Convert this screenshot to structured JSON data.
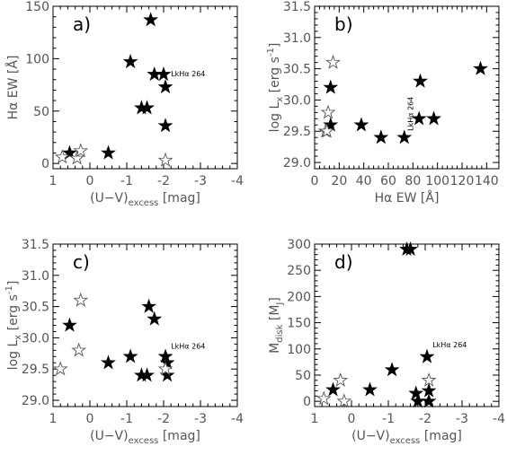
{
  "chart_data": [
    {
      "type": "scatter",
      "panel_label": "a)",
      "xlabel": "(U−V)",
      "xlabel_sub": "excess",
      "xlabel_unit": "[mag]",
      "ylabel": "Hα EW [Å]",
      "xlim": [
        1,
        -4
      ],
      "ylim": [
        -5,
        150
      ],
      "xticks": [
        1,
        0,
        -1,
        -2,
        -3,
        -4
      ],
      "xtick_labels": [
        "1",
        "0",
        "-1",
        "-2",
        "-3",
        "-4"
      ],
      "yticks": [
        0,
        50,
        100,
        150
      ],
      "ytick_labels": [
        "0",
        "50",
        "100",
        "150"
      ],
      "annotations": [
        {
          "text": "LkHα 264",
          "x": -2.2,
          "y": 83,
          "rotate": 0
        }
      ],
      "series": [
        {
          "marker": "filled-star",
          "x": [
            0.55,
            -0.5,
            -1.1,
            -1.4,
            -1.55,
            -1.65,
            -1.75,
            -2.0,
            -2.05,
            -2.05
          ],
          "y": [
            10,
            10,
            97,
            53,
            53,
            137,
            85,
            85,
            73,
            36
          ]
        },
        {
          "marker": "open-star",
          "x": [
            0.75,
            0.35,
            0.25,
            -2.05
          ],
          "y": [
            6,
            5,
            12,
            3
          ]
        }
      ]
    },
    {
      "type": "scatter",
      "panel_label": "b)",
      "xlabel": "Hα EW [Å]",
      "ylabel": "log L",
      "ylabel_sub": "x",
      "ylabel_unit": "[erg s",
      "ylabel_sup": "-1",
      "ylabel_close": "]",
      "xlim": [
        0,
        150
      ],
      "ylim": [
        28.9,
        31.5
      ],
      "xticks": [
        0,
        20,
        40,
        60,
        80,
        100,
        120,
        140
      ],
      "xtick_labels": [
        "0",
        "20",
        "40",
        "60",
        "80",
        "100",
        "120",
        "140"
      ],
      "yticks": [
        29.0,
        29.5,
        30.0,
        30.5,
        31.0,
        31.5
      ],
      "ytick_labels": [
        "29.0",
        "29.5",
        "30.0",
        "30.5",
        "31.0",
        "31.5"
      ],
      "annotations": [
        {
          "text": "LkHα 264",
          "x": 80,
          "y": 29.78,
          "rotate": -90
        }
      ],
      "series": [
        {
          "marker": "filled-star",
          "x": [
            13,
            13,
            38,
            54,
            73,
            85,
            86,
            97,
            135
          ],
          "y": [
            30.2,
            29.6,
            29.6,
            29.4,
            29.4,
            29.7,
            30.3,
            29.7,
            30.5
          ]
        },
        {
          "marker": "open-star",
          "x": [
            9,
            10,
            11,
            15
          ],
          "y": [
            29.5,
            29.5,
            29.8,
            30.6
          ]
        }
      ]
    },
    {
      "type": "scatter",
      "panel_label": "c)",
      "xlabel": "(U−V)",
      "xlabel_sub": "excess",
      "xlabel_unit": "[mag]",
      "ylabel": "log L",
      "ylabel_sub": "x",
      "ylabel_unit": "[erg s",
      "ylabel_sup": "-1",
      "ylabel_close": "]",
      "xlim": [
        1,
        -4
      ],
      "ylim": [
        28.9,
        31.5
      ],
      "xticks": [
        1,
        0,
        -1,
        -2,
        -3,
        -4
      ],
      "xtick_labels": [
        "1",
        "0",
        "-1",
        "-2",
        "-3",
        "-4"
      ],
      "yticks": [
        29.0,
        29.5,
        30.0,
        30.5,
        31.0,
        31.5
      ],
      "ytick_labels": [
        "29.0",
        "29.5",
        "30.0",
        "30.5",
        "31.0",
        "31.5"
      ],
      "annotations": [
        {
          "text": "LkHα 264",
          "x": -2.2,
          "y": 29.83,
          "rotate": 0
        }
      ],
      "series": [
        {
          "marker": "filled-star",
          "x": [
            0.55,
            -0.5,
            -1.1,
            -1.4,
            -1.55,
            -1.6,
            -1.75,
            -2.05,
            -2.1,
            -2.1
          ],
          "y": [
            30.2,
            29.6,
            29.7,
            29.4,
            29.4,
            30.5,
            30.3,
            29.7,
            29.6,
            29.4
          ]
        },
        {
          "marker": "open-star",
          "x": [
            0.8,
            0.3,
            0.25,
            -2.05
          ],
          "y": [
            29.5,
            29.8,
            30.6,
            29.5
          ]
        }
      ]
    },
    {
      "type": "scatter",
      "panel_label": "d)",
      "xlabel": "(U−V)",
      "xlabel_sub": "excess",
      "xlabel_unit": "[mag]",
      "ylabel": "M",
      "ylabel_sub": "disk",
      "ylabel_unit": "[M",
      "ylabel_sub2": "J",
      "ylabel_close": "]",
      "xlim": [
        1,
        -4
      ],
      "ylim": [
        -10,
        300
      ],
      "xticks": [
        1,
        0,
        -1,
        -2,
        -3,
        -4
      ],
      "xtick_labels": [
        "1",
        "0",
        "-1",
        "-2",
        "-3",
        "-4"
      ],
      "yticks": [
        0,
        50,
        100,
        150,
        200,
        250,
        300
      ],
      "ytick_labels": [
        "0",
        "50",
        "100",
        "150",
        "200",
        "250",
        "300"
      ],
      "annotations": [
        {
          "text": "LkHα 264",
          "x": -2.2,
          "y": 103,
          "rotate": 0
        }
      ],
      "series": [
        {
          "marker": "filled-star",
          "x": [
            0.5,
            -0.5,
            -1.1,
            -1.5,
            -1.6,
            -1.75,
            -1.8,
            -2.05,
            -2.1,
            -2.1
          ],
          "y": [
            22,
            22,
            60,
            290,
            290,
            15,
            0,
            85,
            20,
            0
          ]
        },
        {
          "marker": "open-star",
          "x": [
            0.75,
            0.3,
            0.2,
            -2.1
          ],
          "y": [
            5,
            40,
            0,
            40
          ]
        }
      ]
    }
  ]
}
